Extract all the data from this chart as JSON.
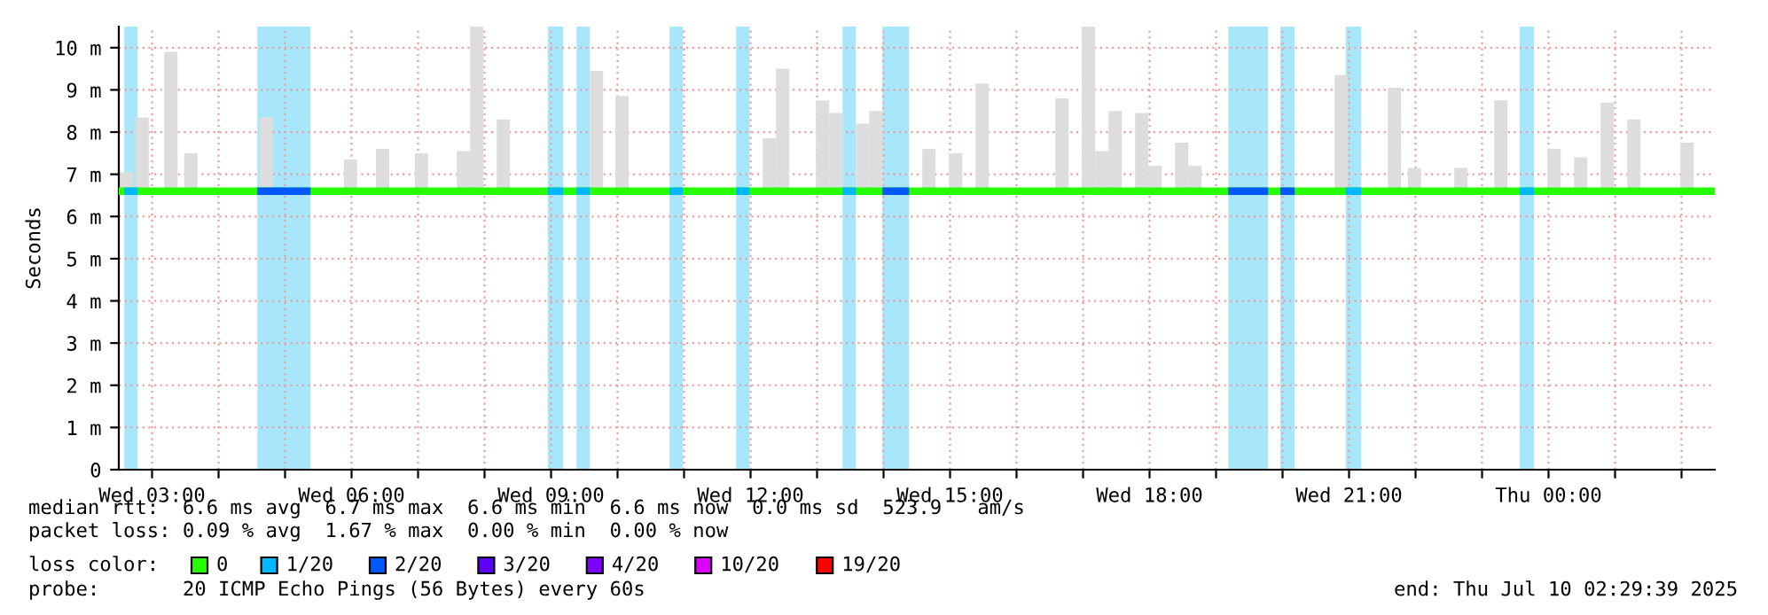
{
  "chart_data": {
    "type": "line",
    "ylabel": "Seconds",
    "legend_title": "loss color:",
    "legend": "bottom",
    "grid": true,
    "line_style": "solid",
    "marker": "none",
    "xlim": [
      "2025-07-09T02:30",
      "2025-07-10T02:30"
    ],
    "ylim": [
      0,
      10.5
    ],
    "xticks": [
      {
        "value": "2025-07-09T03:00",
        "label": "Wed 03:00"
      },
      {
        "value": "2025-07-09T04:00",
        "label": null
      },
      {
        "value": "2025-07-09T05:00",
        "label": null
      },
      {
        "value": "2025-07-09T06:00",
        "label": "Wed 06:00"
      },
      {
        "value": "2025-07-09T07:00",
        "label": null
      },
      {
        "value": "2025-07-09T08:00",
        "label": null
      },
      {
        "value": "2025-07-09T09:00",
        "label": "Wed 09:00"
      },
      {
        "value": "2025-07-09T10:00",
        "label": null
      },
      {
        "value": "2025-07-09T11:00",
        "label": null
      },
      {
        "value": "2025-07-09T12:00",
        "label": "Wed 12:00"
      },
      {
        "value": "2025-07-09T13:00",
        "label": null
      },
      {
        "value": "2025-07-09T14:00",
        "label": null
      },
      {
        "value": "2025-07-09T15:00",
        "label": "Wed 15:00"
      },
      {
        "value": "2025-07-09T16:00",
        "label": null
      },
      {
        "value": "2025-07-09T17:00",
        "label": null
      },
      {
        "value": "2025-07-09T18:00",
        "label": "Wed 18:00"
      },
      {
        "value": "2025-07-09T19:00",
        "label": null
      },
      {
        "value": "2025-07-09T20:00",
        "label": null
      },
      {
        "value": "2025-07-09T21:00",
        "label": "Wed 21:00"
      },
      {
        "value": "2025-07-09T22:00",
        "label": null
      },
      {
        "value": "2025-07-09T23:00",
        "label": null
      },
      {
        "value": "2025-07-10T00:00",
        "label": "Thu 00:00"
      },
      {
        "value": "2025-07-10T01:00",
        "label": null
      },
      {
        "value": "2025-07-10T02:00",
        "label": null
      }
    ],
    "yticks": [
      0,
      {
        "value": 1,
        "label": "1 m"
      },
      {
        "value": 2,
        "label": "2 m"
      },
      {
        "value": 3,
        "label": "3 m"
      },
      {
        "value": 4,
        "label": "4 m"
      },
      {
        "value": 5,
        "label": "5 m"
      },
      {
        "value": 6,
        "label": "6 m"
      },
      {
        "value": 7,
        "label": "7 m"
      },
      {
        "value": 8,
        "label": "8 m"
      },
      {
        "value": 9,
        "label": "9 m"
      },
      {
        "value": 10,
        "label": "10 m"
      }
    ],
    "bands": [
      {
        "axis": "x",
        "from": "2025-07-09T02:35",
        "to": "2025-07-09T02:47",
        "color": "#a8e6fc"
      },
      {
        "axis": "x",
        "from": "2025-07-09T04:35",
        "to": "2025-07-09T05:23",
        "color": "#a8e6fc"
      },
      {
        "axis": "x",
        "from": "2025-07-09T08:57",
        "to": "2025-07-09T09:11",
        "color": "#a8e6fc"
      },
      {
        "axis": "x",
        "from": "2025-07-09T09:23",
        "to": "2025-07-09T09:35",
        "color": "#a8e6fc"
      },
      {
        "axis": "x",
        "from": "2025-07-09T10:47",
        "to": "2025-07-09T10:59",
        "color": "#a8e6fc"
      },
      {
        "axis": "x",
        "from": "2025-07-09T11:47",
        "to": "2025-07-09T11:59",
        "color": "#a8e6fc"
      },
      {
        "axis": "x",
        "from": "2025-07-09T13:23",
        "to": "2025-07-09T13:35",
        "color": "#a8e6fc"
      },
      {
        "axis": "x",
        "from": "2025-07-09T13:59",
        "to": "2025-07-09T14:23",
        "color": "#a8e6fc"
      },
      {
        "axis": "x",
        "from": "2025-07-09T19:11",
        "to": "2025-07-09T19:47",
        "color": "#a8e6fc"
      },
      {
        "axis": "x",
        "from": "2025-07-09T19:58",
        "to": "2025-07-09T20:11",
        "color": "#a8e6fc"
      },
      {
        "axis": "x",
        "from": "2025-07-09T20:57",
        "to": "2025-07-09T21:11",
        "color": "#a8e6fc"
      },
      {
        "axis": "x",
        "from": "2025-07-09T23:34",
        "to": "2025-07-09T23:47",
        "color": "#a8e6fc"
      }
    ],
    "series": [
      {
        "type": "bar",
        "color": "#dddddd",
        "x": [
          "2025-07-09T02:37",
          "2025-07-09T02:51",
          "2025-07-09T03:17",
          "2025-07-09T03:35",
          "2025-07-09T04:43",
          "2025-07-09T05:59",
          "2025-07-09T06:28",
          "2025-07-09T07:03",
          "2025-07-09T07:41",
          "2025-07-09T07:53",
          "2025-07-09T08:17",
          "2025-07-09T09:41",
          "2025-07-09T10:04",
          "2025-07-09T12:17",
          "2025-07-09T12:29",
          "2025-07-09T13:05",
          "2025-07-09T13:17",
          "2025-07-09T13:41",
          "2025-07-09T13:53",
          "2025-07-09T14:41",
          "2025-07-09T15:05",
          "2025-07-09T15:29",
          "2025-07-09T16:41",
          "2025-07-09T17:05",
          "2025-07-09T17:17",
          "2025-07-09T17:29",
          "2025-07-09T17:53",
          "2025-07-09T18:05",
          "2025-07-09T18:29",
          "2025-07-09T18:41",
          "2025-07-09T20:53",
          "2025-07-09T21:41",
          "2025-07-09T21:59",
          "2025-07-09T22:41",
          "2025-07-09T23:17",
          "2025-07-10T00:05",
          "2025-07-10T00:29",
          "2025-07-10T00:53",
          "2025-07-10T01:17",
          "2025-07-10T02:05"
        ],
        "base": [
          6.6,
          6.6,
          6.6,
          6.6,
          6.6,
          6.6,
          6.6,
          6.6,
          6.6,
          6.6,
          6.6,
          6.6,
          6.6,
          6.6,
          6.6,
          6.6,
          6.6,
          6.6,
          6.6,
          6.6,
          6.6,
          6.6,
          6.6,
          6.6,
          6.6,
          6.6,
          6.6,
          6.6,
          6.6,
          6.6,
          6.6,
          6.6,
          6.6,
          6.6,
          6.6,
          6.6,
          6.6,
          6.6,
          6.6,
          6.6
        ],
        "values": [
          0.45,
          1.75,
          3.3,
          0.9,
          1.75,
          0.75,
          1.0,
          0.9,
          0.95,
          3.9,
          1.7,
          2.85,
          2.25,
          1.25,
          2.9,
          2.15,
          1.85,
          1.6,
          1.9,
          1.0,
          0.9,
          2.55,
          2.2,
          3.9,
          0.95,
          1.9,
          1.85,
          0.6,
          1.15,
          0.6,
          2.75,
          2.45,
          0.55,
          0.55,
          2.15,
          1.0,
          0.8,
          2.1,
          1.7,
          1.15
        ]
      },
      {
        "name": "0",
        "color": "#26ff00",
        "x": [
          "2025-07-09T02:30",
          "2025-07-09T08:30",
          "2025-07-09T14:30",
          "2025-07-09T20:30",
          "2025-07-10T02:30"
        ],
        "values": [
          6.6,
          6.6,
          6.6,
          6.6,
          6.6
        ]
      },
      {
        "name": "1/20",
        "color": "#00b8ff",
        "x": [
          "2025-07-09T02:35",
          "2025-07-09T02:47",
          "2025-07-09T02:48",
          "2025-07-09T08:57",
          "2025-07-09T09:11",
          "2025-07-09T09:12",
          "2025-07-09T09:23",
          "2025-07-09T09:35",
          "2025-07-09T09:36",
          "2025-07-09T10:47",
          "2025-07-09T10:59",
          "2025-07-09T11:00",
          "2025-07-09T11:47",
          "2025-07-09T11:59",
          "2025-07-09T12:00",
          "2025-07-09T13:23",
          "2025-07-09T13:35",
          "2025-07-09T13:36",
          "2025-07-09T20:57",
          "2025-07-09T21:11",
          "2025-07-09T21:12",
          "2025-07-09T23:34",
          "2025-07-09T23:47"
        ],
        "values": [
          6.6,
          6.6,
          null,
          6.6,
          6.6,
          null,
          6.6,
          6.6,
          null,
          6.6,
          6.6,
          null,
          6.6,
          6.6,
          null,
          6.6,
          6.6,
          null,
          6.6,
          6.6,
          null,
          6.6,
          6.6
        ]
      },
      {
        "name": "2/20",
        "color": "#0059ff",
        "x": [
          "2025-07-09T04:35",
          "2025-07-09T05:23",
          "2025-07-09T05:24",
          "2025-07-09T13:59",
          "2025-07-09T14:23",
          "2025-07-09T14:24",
          "2025-07-09T19:11",
          "2025-07-09T19:47",
          "2025-07-09T19:48",
          "2025-07-09T19:58",
          "2025-07-09T20:11"
        ],
        "values": [
          6.6,
          6.6,
          null,
          6.6,
          6.6,
          null,
          6.6,
          6.6,
          null,
          6.6,
          6.6
        ]
      },
      {
        "name": "3/20",
        "color": "#5e00ff"
      },
      {
        "name": "4/20",
        "color": "#7e00ff"
      },
      {
        "name": "10/20",
        "color": "#dd00ff"
      },
      {
        "name": "19/20",
        "color": "#ff0000"
      }
    ],
    "annotations": [
      "median rtt:  6.6 ms avg  6.7 ms max  6.6 ms min  6.6 ms now  0.0 ms sd  523.9   am/s",
      "packet loss: 0.09 % avg  1.67 % max  0.00 % min  0.00 % now",
      "probe:       20 ICMP Echo Pings (56 Bytes) every 60s",
      "end: Thu Jul 10 02:29:39 2025"
    ]
  }
}
